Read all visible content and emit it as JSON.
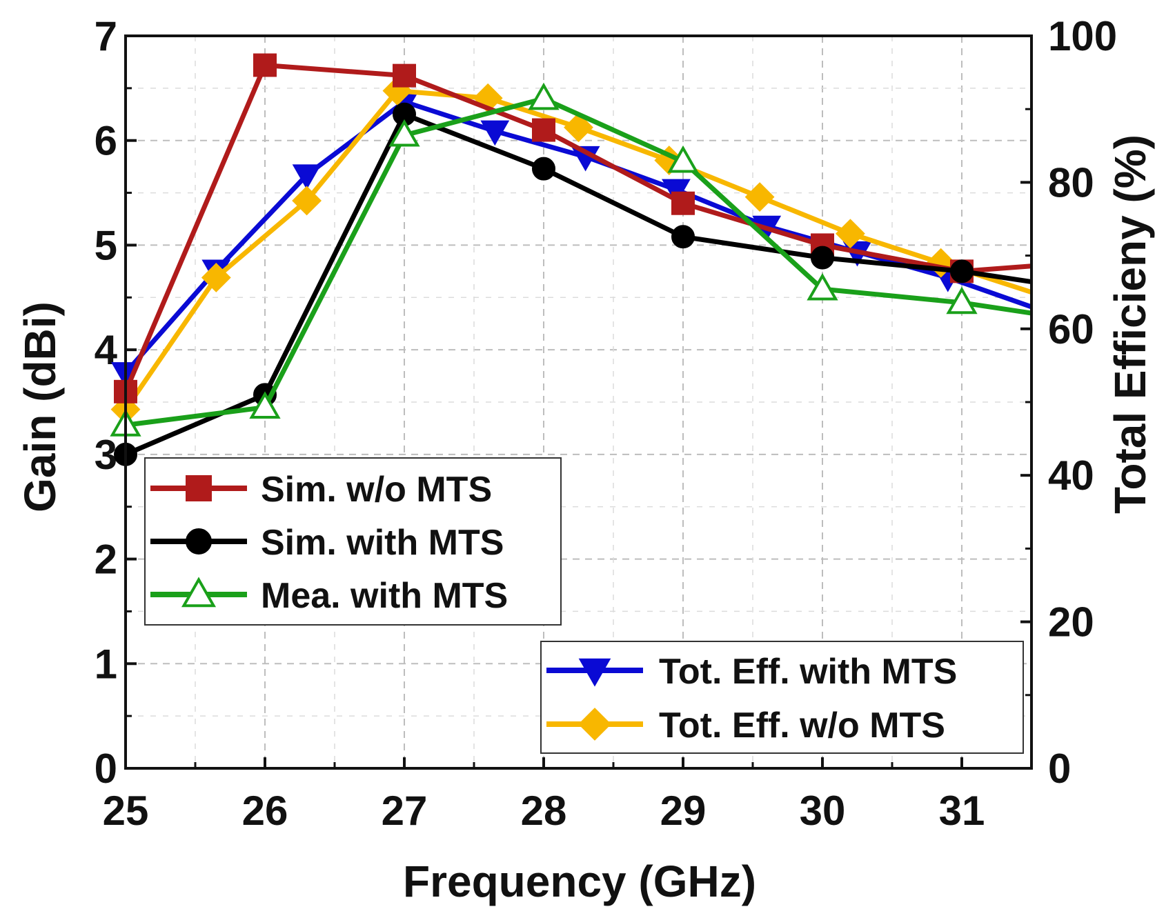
{
  "chart_data": {
    "type": "line",
    "title": "",
    "xlabel": "Frequency (GHz)",
    "ylabel": "Gain (dBi)",
    "y2label": "Total Efficieny (%)",
    "xlim": [
      25,
      31.5
    ],
    "ylim": [
      0,
      7
    ],
    "y2lim": [
      0,
      100
    ],
    "x_ticks": [
      25,
      26,
      27,
      28,
      29,
      30,
      31
    ],
    "x_tick_labels": [
      "25",
      "26",
      "27",
      "28",
      "29",
      "30",
      "31"
    ],
    "y_ticks": [
      0,
      1,
      2,
      3,
      4,
      5,
      6,
      7
    ],
    "y_tick_labels": [
      "0",
      "1",
      "2",
      "3",
      "4",
      "5",
      "6",
      "7"
    ],
    "y2_ticks": [
      0,
      20,
      40,
      60,
      80,
      100
    ],
    "y2_tick_labels": [
      "0",
      "20",
      "40",
      "60",
      "80",
      "100"
    ],
    "grid": true,
    "series": [
      {
        "name": "Sim. w/o MTS",
        "axis": "left",
        "color": "#b01b1b",
        "marker": "square",
        "x": [
          25,
          26,
          27,
          28,
          29,
          30,
          31,
          31.5
        ],
        "values": [
          3.6,
          6.72,
          6.62,
          6.1,
          5.4,
          5.0,
          4.75,
          4.8
        ]
      },
      {
        "name": "Sim. with MTS",
        "axis": "left",
        "color": "#000000",
        "marker": "circle",
        "x": [
          25,
          26,
          27,
          28,
          29,
          30,
          31,
          31.5
        ],
        "values": [
          3.0,
          3.57,
          6.25,
          5.73,
          5.08,
          4.88,
          4.75,
          4.65
        ]
      },
      {
        "name": "Mea. with MTS",
        "axis": "left",
        "color": "#1aa01a",
        "marker": "triangle-up-open",
        "x": [
          25,
          26,
          27,
          28,
          29,
          30,
          31,
          31.5
        ],
        "values": [
          3.28,
          3.45,
          6.05,
          6.4,
          5.8,
          4.58,
          4.45,
          4.35
        ]
      },
      {
        "name": "Tot. Eff. with MTS",
        "axis": "right",
        "color": "#0a0ad4",
        "marker": "triangle-down",
        "x": [
          25,
          25.65,
          26.3,
          27,
          27.65,
          28.3,
          28.95,
          29.6,
          30.25,
          30.9,
          31.5
        ],
        "values": [
          54,
          68,
          81,
          91,
          87,
          83.5,
          79,
          74,
          70.5,
          67,
          63
        ]
      },
      {
        "name": "Tot. Eff. w/o MTS",
        "axis": "right",
        "color": "#f8b700",
        "marker": "diamond",
        "x": [
          25,
          25.65,
          26.3,
          26.95,
          27.6,
          28.25,
          28.9,
          29.55,
          30.2,
          30.85,
          31.5
        ],
        "values": [
          49,
          67,
          77.5,
          92.5,
          91.5,
          87.5,
          83,
          78,
          73,
          69,
          65
        ]
      }
    ],
    "legends": [
      {
        "placement": "middle-left",
        "entries": [
          "Sim. w/o MTS",
          "Sim. with MTS",
          "Mea. with MTS"
        ]
      },
      {
        "placement": "bottom-right",
        "entries": [
          "Tot. Eff. with MTS",
          "Tot. Eff. w/o MTS"
        ]
      }
    ]
  }
}
